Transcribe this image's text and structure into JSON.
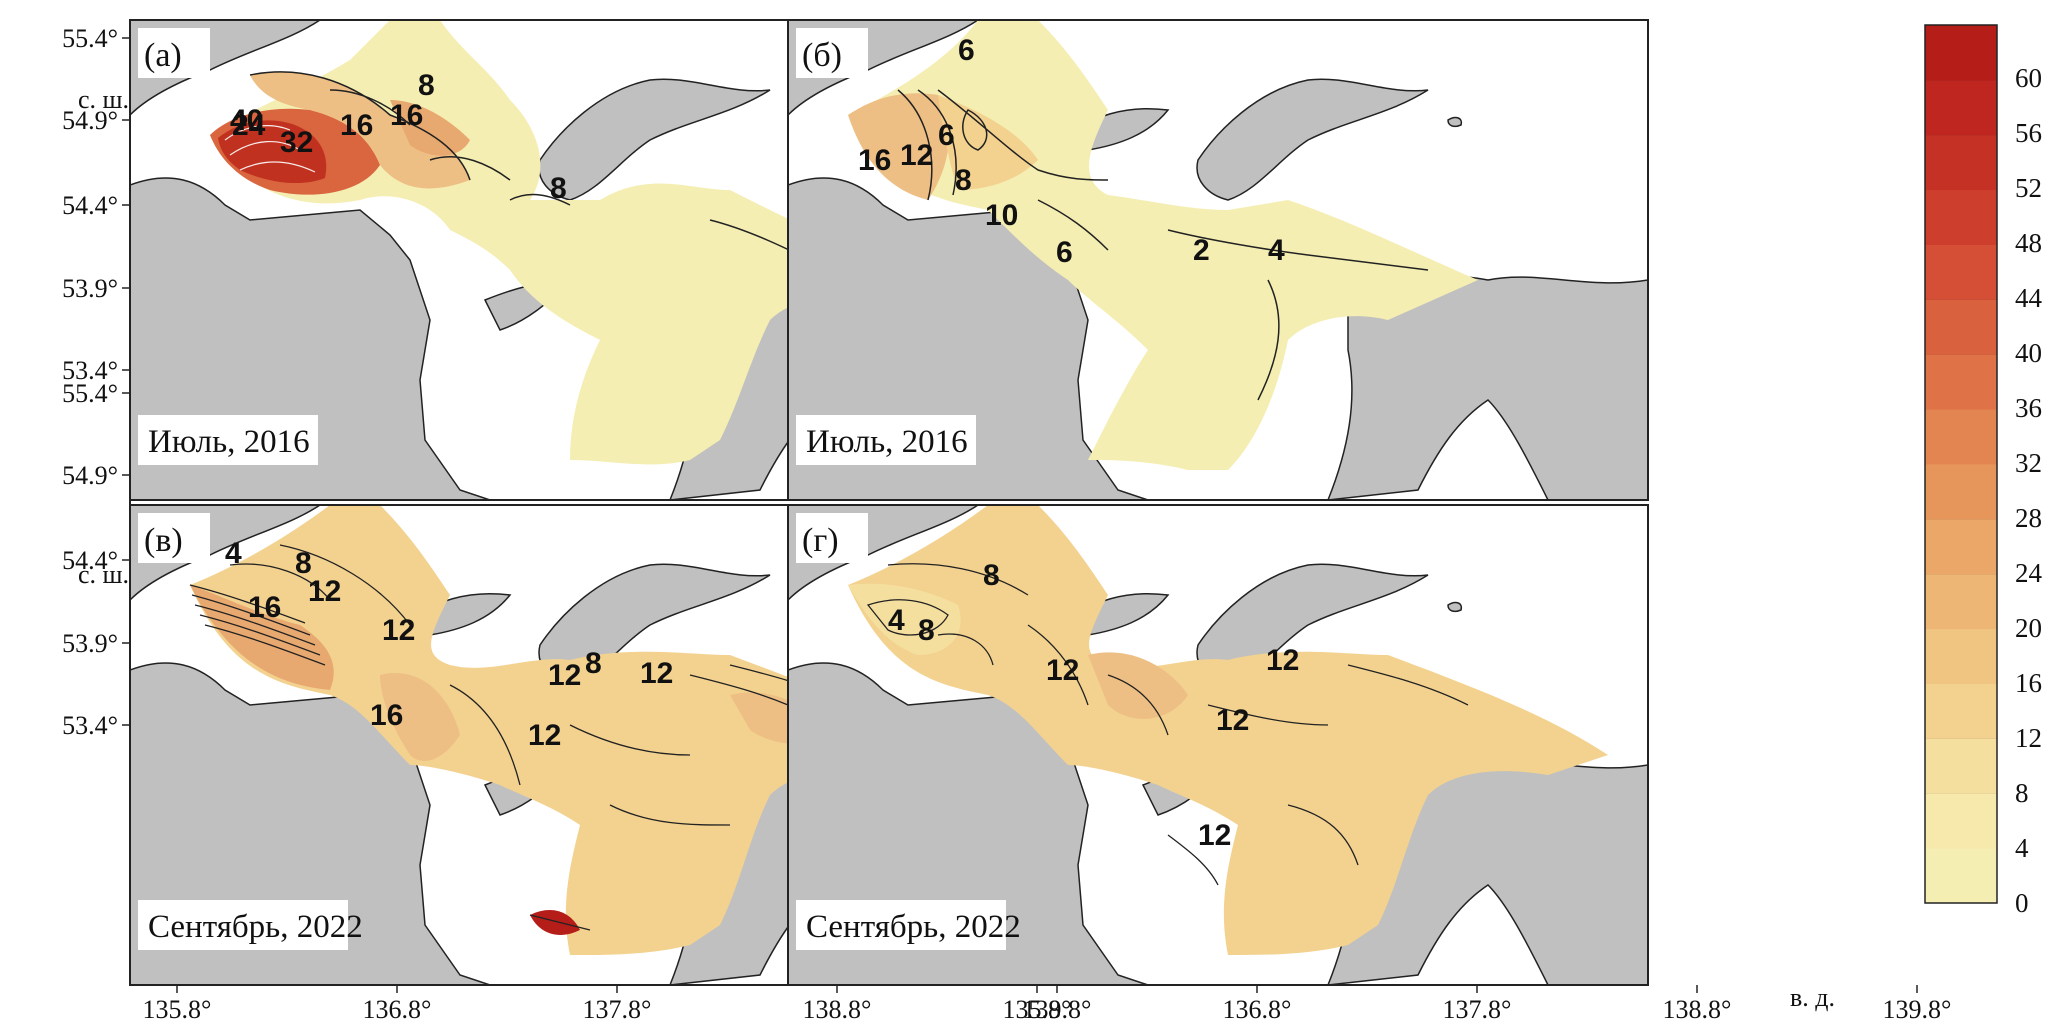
{
  "panels": [
    {
      "letter": "(а)",
      "date": "Июль, 2016",
      "contour_labels": [
        "16",
        "24",
        "32",
        "16",
        "8",
        "8",
        "40"
      ]
    },
    {
      "letter": "(б)",
      "date": "Июль, 2016",
      "contour_labels": [
        "16",
        "12",
        "6",
        "8",
        "10",
        "6",
        "6",
        "2",
        "4"
      ]
    },
    {
      "letter": "(в)",
      "date": "Сентябрь, 2022",
      "contour_labels": [
        "4",
        "8",
        "12",
        "16",
        "12",
        "16",
        "12",
        "8",
        "12",
        "12"
      ]
    },
    {
      "letter": "(г)",
      "date": "Сентябрь, 2022",
      "contour_labels": [
        "8",
        "4",
        "8",
        "12",
        "12",
        "12",
        "12"
      ]
    }
  ],
  "y_axis": {
    "ticks": [
      "55.4°",
      "54.9°",
      "54.4°",
      "53.9°",
      "53.4°"
    ],
    "unit": "с. ш."
  },
  "x_axis": {
    "left_ticks": [
      "135.8°",
      "136.8°",
      "137.8°",
      "138.8°",
      "139.8°"
    ],
    "right_ticks": [
      "135.8°",
      "136.8°",
      "137.8°",
      "138.8°",
      "139.8°"
    ],
    "unit": "в. д."
  },
  "colorbar": {
    "ticks": [
      "0",
      "4",
      "8",
      "12",
      "16",
      "20",
      "24",
      "28",
      "32",
      "36",
      "40",
      "44",
      "48",
      "52",
      "56",
      "60"
    ],
    "colors": [
      "#f5eeb3",
      "#f6e9ab",
      "#f5df9f",
      "#f3d290",
      "#f0c582",
      "#edb674",
      "#eaa767",
      "#e7965b",
      "#e38551",
      "#df7347",
      "#da613e",
      "#d44f35",
      "#cd3f2c",
      "#c63125",
      "#bf261f",
      "#b51d19"
    ]
  },
  "map_colors": {
    "land": "#c0c0c0",
    "sea_blank": "#ffffff",
    "outline": "#222222"
  }
}
